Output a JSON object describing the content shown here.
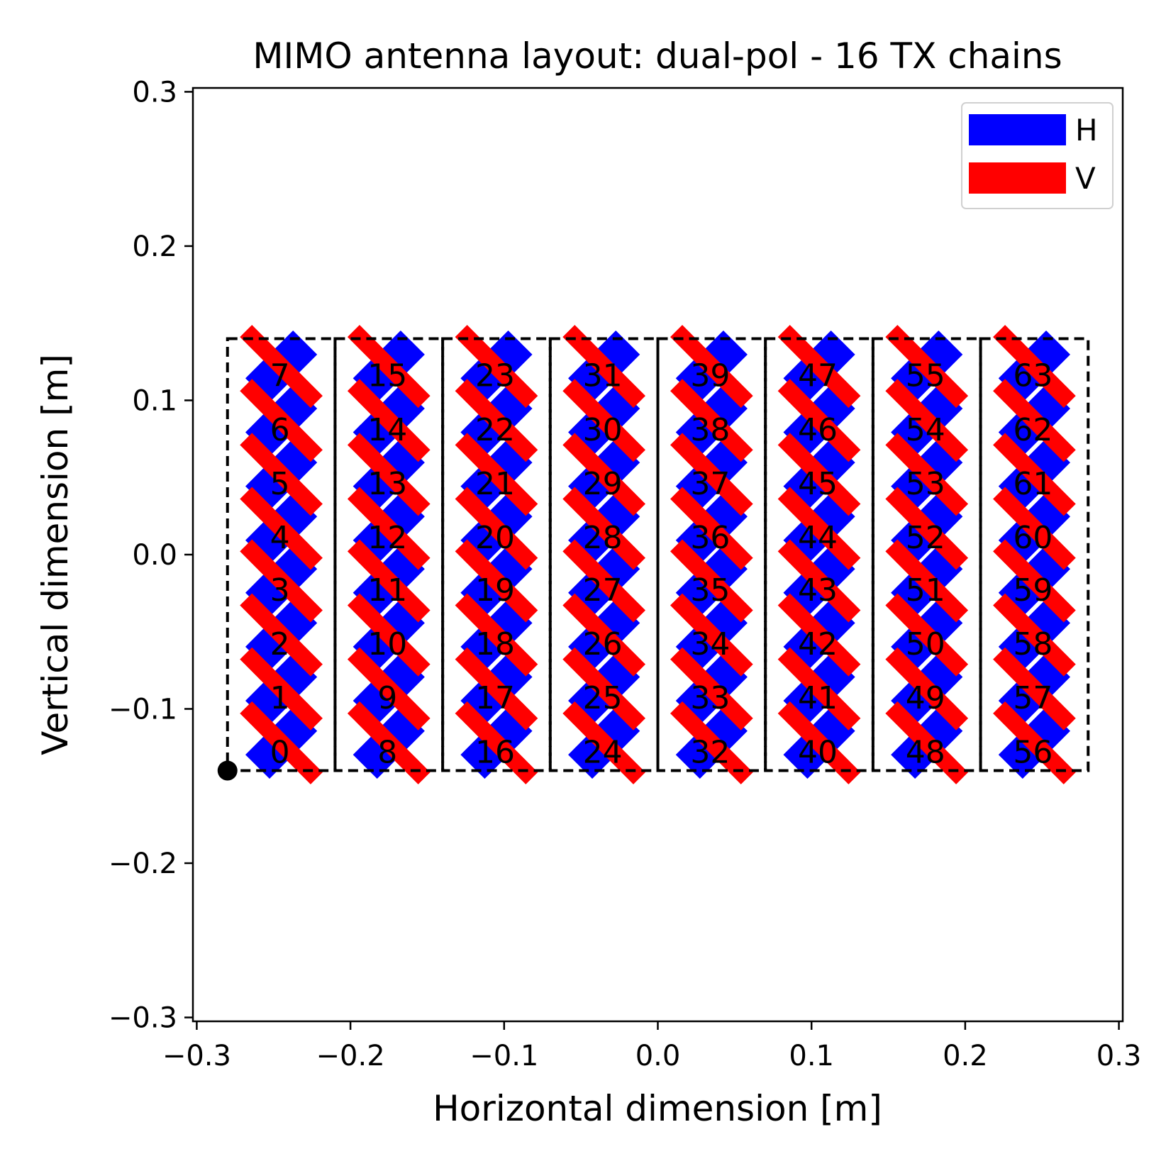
{
  "chart_data": {
    "type": "scatter",
    "title": "MIMO antenna layout: dual-pol - 16 TX chains",
    "xlabel": "Horizontal dimension [m]",
    "ylabel": "Vertical dimension [m]",
    "xlim": [
      -0.3,
      0.3
    ],
    "ylim": [
      -0.3,
      0.3
    ],
    "xticks": [
      -0.3,
      -0.2,
      -0.1,
      0.0,
      0.1,
      0.2,
      0.3
    ],
    "yticks": [
      -0.3,
      -0.2,
      -0.1,
      0.0,
      0.1,
      0.2,
      0.3
    ],
    "xtick_labels": [
      "−0.3",
      "−0.2",
      "−0.1",
      "0.0",
      "0.1",
      "0.2",
      "0.3"
    ],
    "ytick_labels": [
      "−0.3",
      "−0.2",
      "−0.1",
      "0.0",
      "0.1",
      "0.2",
      "0.3"
    ],
    "legend": {
      "placement": "upper-right",
      "entries": [
        {
          "label": "H",
          "color": "#0000ff"
        },
        {
          "label": "V",
          "color": "#ff0000"
        }
      ]
    },
    "colors": {
      "H": "#0000ff",
      "V": "#ff0000",
      "panel_border": "#000000",
      "origin_marker": "#000000"
    },
    "origin_marker": {
      "x": -0.28,
      "y": -0.14
    },
    "panels": {
      "count": 8,
      "x_start": -0.28,
      "panel_width": 0.07,
      "y_min": -0.14,
      "y_max": 0.14
    },
    "elements": {
      "columns": 8,
      "rows": 8,
      "column_x_center": [
        -0.245,
        -0.175,
        -0.105,
        -0.035,
        0.035,
        0.105,
        0.175,
        0.245
      ],
      "row_y_center": [
        -0.122,
        -0.087,
        -0.052,
        -0.017,
        0.017,
        0.052,
        0.087,
        0.122
      ],
      "labels": [
        [
          "0",
          "1",
          "2",
          "3",
          "4",
          "5",
          "6",
          "7"
        ],
        [
          "8",
          "9",
          "10",
          "11",
          "12",
          "13",
          "14",
          "15"
        ],
        [
          "16",
          "17",
          "18",
          "19",
          "20",
          "21",
          "22",
          "23"
        ],
        [
          "24",
          "25",
          "26",
          "27",
          "28",
          "29",
          "30",
          "31"
        ],
        [
          "32",
          "33",
          "34",
          "35",
          "36",
          "37",
          "38",
          "39"
        ],
        [
          "40",
          "41",
          "42",
          "43",
          "44",
          "45",
          "46",
          "47"
        ],
        [
          "48",
          "49",
          "50",
          "51",
          "52",
          "53",
          "54",
          "55"
        ],
        [
          "56",
          "57",
          "58",
          "59",
          "60",
          "61",
          "62",
          "63"
        ]
      ]
    }
  }
}
